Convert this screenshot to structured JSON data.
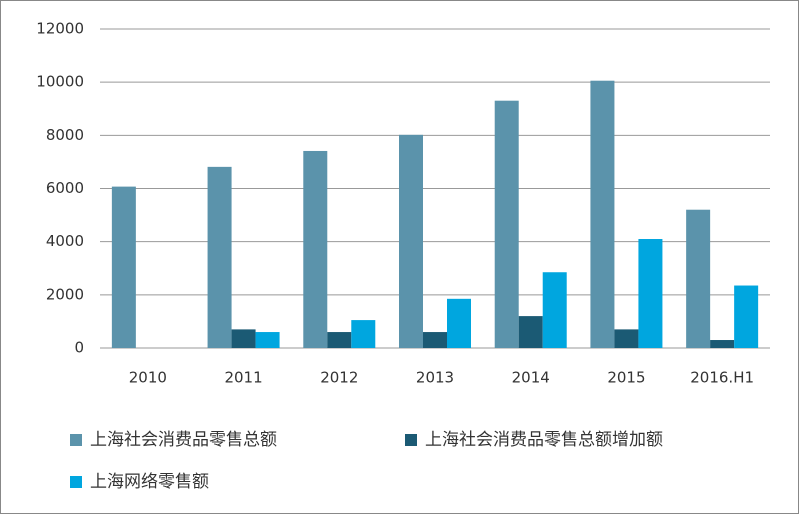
{
  "chart_data": {
    "type": "bar",
    "categories": [
      "2010",
      "2011",
      "2012",
      "2013",
      "2014",
      "2015",
      "2016.H1"
    ],
    "series": [
      {
        "name": "上海社会消费品零售总额",
        "color": "#5b93ab",
        "values": [
          6071,
          6814,
          7412,
          8019,
          9303,
          10055,
          5202
        ]
      },
      {
        "name": "上海社会消费品零售总额增加额",
        "color": "#1b5a74",
        "values": [
          null,
          700,
          600,
          600,
          1200,
          700,
          300
        ]
      },
      {
        "name": "上海网络零售额",
        "color": "#00a6df",
        "values": [
          null,
          600,
          1050,
          1850,
          2850,
          4100,
          2350
        ]
      }
    ],
    "ylim": [
      0,
      12000
    ],
    "yticks": [
      0,
      2000,
      4000,
      6000,
      8000,
      10000,
      12000
    ],
    "grid": true
  }
}
